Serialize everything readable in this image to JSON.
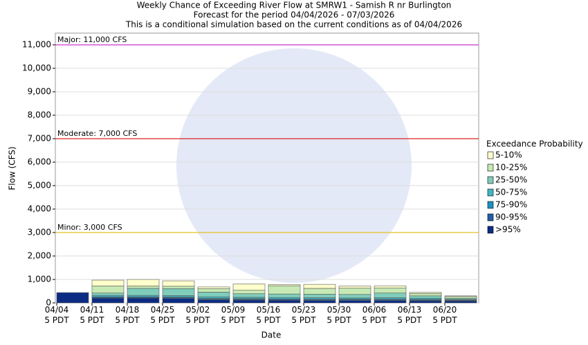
{
  "chart_data": {
    "type": "stacked_bar",
    "title": "Weekly Chance of Exceeding River Flow at SMRW1 - Samish R nr Burlington",
    "subtitle": "Forecast for the period 04/04/2026 - 07/03/2026",
    "subtitle2": "This is a conditional simulation based on the current conditions as of 04/04/2026",
    "x_label": "Date",
    "y_label": "Flow (CFS)",
    "legend_title": "Exceedance Probability",
    "categories": [
      "04/04\n5 PDT",
      "04/11\n5 PDT",
      "04/18\n5 PDT",
      "04/25\n5 PDT",
      "05/02\n5 PDT",
      "05/09\n5 PDT",
      "05/16\n5 PDT",
      "05/23\n5 PDT",
      "05/30\n5 PDT",
      "06/06\n5 PDT",
      "06/13\n5 PDT",
      "06/20\n5 PDT"
    ],
    "series": [
      {
        "name": "5-10%",
        "color": "#ffffcc",
        "values": [
          0,
          250,
          280,
          230,
          70,
          270,
          50,
          170,
          90,
          90,
          50,
          30
        ]
      },
      {
        "name": "10-25%",
        "color": "#c7e9b4",
        "values": [
          0,
          300,
          100,
          100,
          150,
          150,
          350,
          250,
          270,
          220,
          100,
          70
        ]
      },
      {
        "name": "25-50%",
        "color": "#7fcdbb",
        "values": [
          0,
          100,
          300,
          300,
          200,
          150,
          150,
          150,
          150,
          200,
          100,
          50
        ]
      },
      {
        "name": "50-75%",
        "color": "#41b6c4",
        "values": [
          0,
          60,
          60,
          60,
          70,
          60,
          60,
          60,
          50,
          60,
          50,
          30
        ]
      },
      {
        "name": "75-90%",
        "color": "#1d91c0",
        "values": [
          0,
          30,
          30,
          30,
          30,
          30,
          30,
          30,
          30,
          30,
          30,
          20
        ]
      },
      {
        "name": "90-95%",
        "color": "#225ea8",
        "values": [
          0,
          30,
          30,
          30,
          30,
          30,
          30,
          30,
          30,
          30,
          30,
          20
        ]
      },
      {
        "name": ">95%",
        "color": "#0c2c84",
        "values": [
          440,
          200,
          200,
          190,
          130,
          120,
          110,
          100,
          100,
          100,
          90,
          80
        ]
      }
    ],
    "thresholds": [
      {
        "label": "Major: 11,000 CFS",
        "value": 11000,
        "color": "#cc33cc"
      },
      {
        "label": "Moderate: 7,000 CFS",
        "value": 7000,
        "color": "#dd2222"
      },
      {
        "label": "Minor: 3,000 CFS",
        "value": 3000,
        "color": "#e8c020"
      }
    ],
    "ylim": [
      0,
      11500
    ],
    "yticks": [
      0,
      {
        "value": 1000,
        "label": "1,000"
      },
      {
        "value": 2000,
        "label": "2,000"
      },
      {
        "value": 3000,
        "label": "3,000"
      },
      {
        "value": 4000,
        "label": "4,000"
      },
      {
        "value": 5000,
        "label": "5,000"
      },
      {
        "value": 6000,
        "label": "6,000"
      },
      {
        "value": 7000,
        "label": "7,000"
      },
      {
        "value": 8000,
        "label": "8,000"
      },
      {
        "value": 9000,
        "label": "9,000"
      },
      {
        "value": 10000,
        "label": "10,000"
      },
      {
        "value": 11000,
        "label": "11,000"
      }
    ],
    "grid": true
  }
}
